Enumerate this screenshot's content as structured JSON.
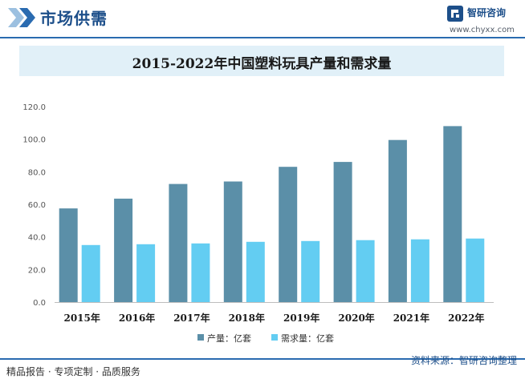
{
  "header": {
    "title": "市场供需",
    "brand": "智研咨询",
    "url": "www.chyxx.com"
  },
  "footer": {
    "left": "精品报告 · 专项定制 · 品质服务",
    "source": "资料来源：智研咨询整理"
  },
  "colors": {
    "production": "#5b8fa8",
    "demand": "#63cdf2",
    "accent": "#1d4f8a"
  },
  "chart_data": {
    "type": "bar",
    "title": "2015-2022年中国塑料玩具产量和需求量",
    "categories": [
      "2015年",
      "2016年",
      "2017年",
      "2018年",
      "2019年",
      "2020年",
      "2021年",
      "2022年"
    ],
    "series": [
      {
        "name": "产量：亿套",
        "values": [
          57.5,
          63.5,
          72.5,
          74.0,
          83.0,
          86.0,
          99.5,
          108.0
        ]
      },
      {
        "name": "需求量：亿套",
        "values": [
          35.0,
          35.5,
          36.0,
          37.0,
          37.5,
          38.0,
          38.5,
          39.0
        ]
      }
    ],
    "yticks": [
      "0.0",
      "20.0",
      "40.0",
      "60.0",
      "80.0",
      "100.0",
      "120.0"
    ],
    "ylim": [
      0,
      120
    ],
    "grid": false,
    "legend": "bottom"
  }
}
